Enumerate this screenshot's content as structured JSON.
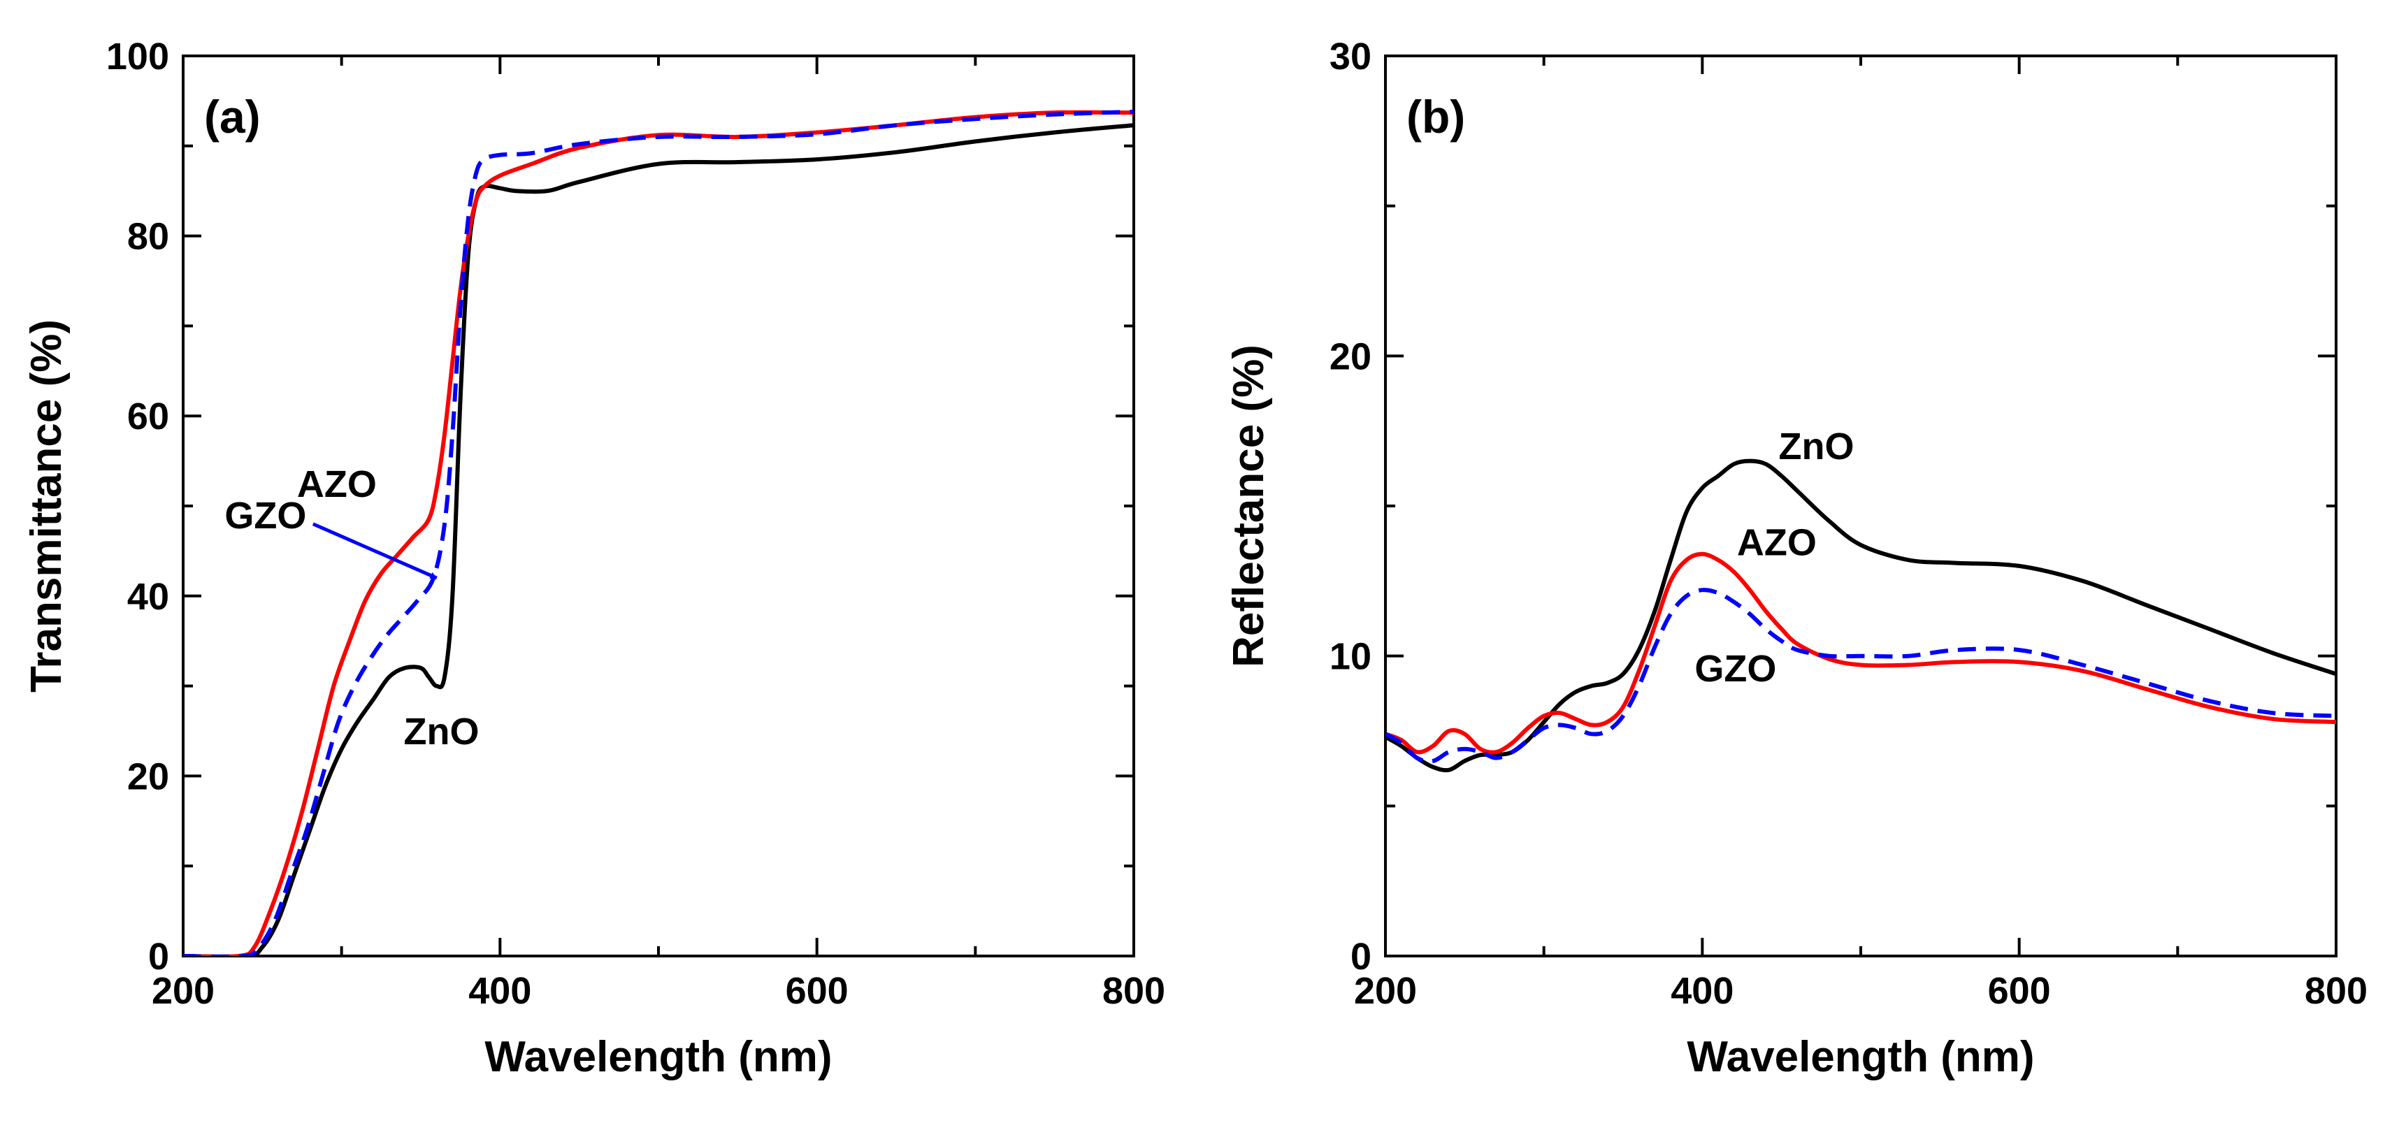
{
  "chart_data": [
    {
      "type": "line",
      "panel_label": "(a)",
      "xlabel": "Wavelength (nm)",
      "ylabel": "Transmittance (%)",
      "xlim": [
        200,
        800
      ],
      "ylim": [
        0,
        100
      ],
      "xticks": [
        200,
        400,
        600,
        800
      ],
      "yticks": [
        0,
        20,
        40,
        60,
        80,
        100
      ],
      "legend": "none",
      "grid": false,
      "series": [
        {
          "name": "ZnO",
          "color": "#000000",
          "dash": "solid",
          "x": [
            200,
            240,
            250,
            260,
            270,
            280,
            290,
            300,
            310,
            320,
            330,
            340,
            350,
            355,
            360,
            365,
            370,
            375,
            380,
            385,
            390,
            400,
            410,
            430,
            450,
            500,
            550,
            600,
            650,
            700,
            750,
            800
          ],
          "y": [
            0,
            0,
            1,
            4,
            9,
            14,
            19,
            23,
            26,
            28.5,
            31,
            32,
            32,
            31,
            30,
            31,
            40,
            62,
            78,
            84,
            85.5,
            85.3,
            85,
            85,
            86,
            88,
            88.2,
            88.5,
            89.3,
            90.5,
            91.5,
            92.3
          ]
        },
        {
          "name": "AZO",
          "color": "#ff0000",
          "dash": "solid",
          "x": [
            200,
            235,
            245,
            255,
            265,
            275,
            285,
            295,
            305,
            315,
            325,
            335,
            345,
            355,
            360,
            365,
            370,
            375,
            380,
            385,
            390,
            400,
            420,
            450,
            500,
            550,
            600,
            650,
            700,
            750,
            800
          ],
          "y": [
            0,
            0,
            1,
            5,
            10,
            16,
            23,
            30,
            35,
            39.5,
            42.5,
            44.5,
            46.5,
            48.5,
            52,
            58,
            66,
            74,
            80,
            84,
            85.5,
            86.7,
            88,
            89.8,
            91.2,
            91,
            91.5,
            92.3,
            93.2,
            93.7,
            93.7
          ]
        },
        {
          "name": "GZO",
          "color": "#0000ff",
          "dash": "dashed",
          "x": [
            200,
            238,
            248,
            258,
            268,
            278,
            288,
            298,
            308,
            318,
            328,
            338,
            348,
            358,
            365,
            370,
            375,
            380,
            385,
            390,
            400,
            420,
            450,
            500,
            550,
            600,
            650,
            700,
            750,
            800
          ],
          "y": [
            0,
            0,
            1,
            4,
            9,
            14,
            20,
            26,
            30,
            33,
            35.5,
            37.5,
            39.5,
            42,
            48,
            58,
            72,
            82,
            87,
            88.5,
            89,
            89.2,
            90.2,
            91,
            91,
            91.3,
            92.3,
            93,
            93.5,
            93.8
          ]
        }
      ],
      "annotations": [
        {
          "text": "AZO",
          "x": 297,
          "y": 52.5
        },
        {
          "text": "GZO",
          "x": 252,
          "y": 49
        },
        {
          "text": "ZnO",
          "x": 363,
          "y": 25
        }
      ],
      "arrow": {
        "from": [
          282,
          48
        ],
        "to": [
          360,
          42
        ],
        "color": "#0000ff"
      }
    },
    {
      "type": "line",
      "panel_label": "(b)",
      "xlabel": "Wavelength (nm)",
      "ylabel": "Reflectance (%)",
      "xlim": [
        200,
        800
      ],
      "ylim": [
        0,
        30
      ],
      "xticks": [
        200,
        400,
        600,
        800
      ],
      "yticks": [
        0,
        10,
        20,
        30
      ],
      "legend": "none",
      "grid": false,
      "series": [
        {
          "name": "ZnO",
          "color": "#000000",
          "dash": "solid",
          "x": [
            200,
            210,
            220,
            230,
            240,
            250,
            260,
            270,
            280,
            290,
            300,
            310,
            320,
            330,
            340,
            350,
            360,
            370,
            380,
            390,
            400,
            410,
            420,
            430,
            440,
            450,
            460,
            480,
            500,
            530,
            560,
            600,
            640,
            680,
            720,
            760,
            800
          ],
          "y": [
            7.3,
            7.0,
            6.6,
            6.3,
            6.2,
            6.5,
            6.7,
            6.7,
            6.8,
            7.2,
            7.8,
            8.4,
            8.8,
            9.0,
            9.1,
            9.4,
            10.2,
            11.5,
            13.2,
            14.8,
            15.6,
            16.0,
            16.4,
            16.5,
            16.4,
            16.0,
            15.5,
            14.5,
            13.7,
            13.2,
            13.1,
            13.0,
            12.5,
            11.7,
            10.9,
            10.1,
            9.4
          ]
        },
        {
          "name": "AZO",
          "color": "#ff0000",
          "dash": "solid",
          "x": [
            200,
            210,
            220,
            230,
            240,
            250,
            260,
            270,
            280,
            290,
            300,
            310,
            320,
            330,
            340,
            350,
            360,
            370,
            380,
            390,
            400,
            410,
            420,
            430,
            440,
            450,
            460,
            480,
            500,
            530,
            560,
            600,
            640,
            680,
            720,
            760,
            800
          ],
          "y": [
            7.4,
            7.2,
            6.8,
            7.0,
            7.5,
            7.4,
            6.9,
            6.8,
            7.1,
            7.6,
            8.0,
            8.1,
            7.9,
            7.7,
            7.8,
            8.3,
            9.5,
            11.0,
            12.5,
            13.2,
            13.4,
            13.2,
            12.8,
            12.2,
            11.5,
            10.9,
            10.4,
            9.9,
            9.7,
            9.7,
            9.8,
            9.8,
            9.5,
            8.9,
            8.3,
            7.9,
            7.8
          ]
        },
        {
          "name": "GZO",
          "color": "#0000ff",
          "dash": "dashed",
          "x": [
            200,
            210,
            220,
            230,
            240,
            250,
            260,
            270,
            280,
            290,
            300,
            310,
            320,
            330,
            340,
            350,
            360,
            370,
            380,
            390,
            400,
            410,
            420,
            430,
            440,
            450,
            460,
            480,
            500,
            530,
            560,
            600,
            640,
            680,
            720,
            760,
            800
          ],
          "y": [
            7.4,
            7.1,
            6.6,
            6.5,
            6.8,
            6.9,
            6.8,
            6.6,
            6.8,
            7.2,
            7.6,
            7.7,
            7.6,
            7.4,
            7.5,
            8.0,
            9.0,
            10.3,
            11.4,
            12.0,
            12.2,
            12.1,
            11.8,
            11.4,
            10.9,
            10.5,
            10.2,
            10.0,
            10.0,
            10.0,
            10.2,
            10.2,
            9.7,
            9.1,
            8.5,
            8.1,
            8.0
          ]
        }
      ],
      "annotations": [
        {
          "text": "ZnO",
          "x": 472,
          "y": 17
        },
        {
          "text": "AZO",
          "x": 447,
          "y": 13.8
        },
        {
          "text": "GZO",
          "x": 421,
          "y": 9.6
        }
      ]
    }
  ]
}
